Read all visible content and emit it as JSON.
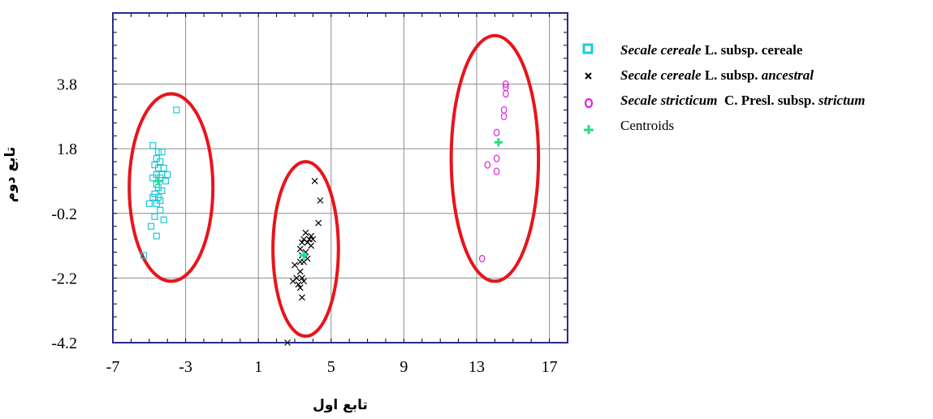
{
  "colors": {
    "cereale": "#1ec8d8",
    "ancestral": "#000000",
    "strictum": "#e020e0",
    "centroid": "#22e08a",
    "ellipse": "#e8141c",
    "frame": "#2c2c8c",
    "grid": "#8c8c8c"
  },
  "legend": [
    {
      "marker": "square-icon",
      "parts": [
        {
          "text": "Secale cereale",
          "italic": true
        },
        {
          "text": " L. subsp. cereale",
          "italic": false
        }
      ]
    },
    {
      "marker": "x-icon",
      "parts": [
        {
          "text": "Secale cereale",
          "italic": true
        },
        {
          "text": " L. subsp. ",
          "italic": false
        },
        {
          "text": "ancestral",
          "italic": true
        }
      ]
    },
    {
      "marker": "circle-icon",
      "parts": [
        {
          "text": "Secale stricticum",
          "italic": true
        },
        {
          "text": "  C. Presl. subsp. ",
          "italic": false
        },
        {
          "text": "strictum",
          "italic": true
        }
      ]
    },
    {
      "marker": "plus-icon",
      "parts": [
        {
          "text": "Centroids",
          "italic": false
        }
      ],
      "plain": true
    }
  ],
  "chart_data": {
    "type": "scatter",
    "xlabel": "تابع اول",
    "ylabel": "تابع دوم",
    "xlim": [
      -7,
      18
    ],
    "ylim": [
      -4.2,
      6.0
    ],
    "xticks": [
      -7,
      -3,
      1,
      5,
      9,
      13,
      17
    ],
    "xtick_labels": [
      "-7",
      "-3",
      "1",
      "5",
      "9",
      "13",
      "17"
    ],
    "yticks": [
      -4.2,
      -2.2,
      -0.2,
      1.8,
      3.8
    ],
    "ytick_labels": [
      "-4.2",
      "-2.2",
      "-0.2",
      "1.8",
      "3.8"
    ],
    "grid": true,
    "legend_position": "right",
    "series": [
      {
        "name": "Secale cereale L. subsp. cereale",
        "marker": "square",
        "points": [
          [
            -3.5,
            3.0
          ],
          [
            -4.8,
            1.9
          ],
          [
            -4.5,
            1.7
          ],
          [
            -4.3,
            1.7
          ],
          [
            -4.6,
            1.5
          ],
          [
            -4.4,
            1.4
          ],
          [
            -4.7,
            1.3
          ],
          [
            -4.5,
            1.2
          ],
          [
            -4.2,
            1.2
          ],
          [
            -4.6,
            1.0
          ],
          [
            -4.3,
            1.0
          ],
          [
            -4.0,
            1.0
          ],
          [
            -4.8,
            0.9
          ],
          [
            -4.4,
            0.9
          ],
          [
            -4.1,
            0.8
          ],
          [
            -4.6,
            0.7
          ],
          [
            -4.5,
            0.6
          ],
          [
            -4.3,
            0.5
          ],
          [
            -4.7,
            0.4
          ],
          [
            -4.5,
            0.3
          ],
          [
            -4.8,
            0.3
          ],
          [
            -4.4,
            0.2
          ],
          [
            -4.6,
            0.1
          ],
          [
            -5.0,
            0.1
          ],
          [
            -4.4,
            -0.1
          ],
          [
            -4.7,
            -0.3
          ],
          [
            -4.2,
            -0.4
          ],
          [
            -4.9,
            -0.6
          ],
          [
            -4.6,
            -0.9
          ],
          [
            -5.3,
            -1.5
          ]
        ]
      },
      {
        "name": "Secale cereale L. subsp. ancestral",
        "marker": "x",
        "points": [
          [
            4.1,
            0.8
          ],
          [
            4.4,
            0.2
          ],
          [
            4.3,
            -0.5
          ],
          [
            3.6,
            -0.8
          ],
          [
            3.9,
            -0.9
          ],
          [
            3.5,
            -1.0
          ],
          [
            3.8,
            -1.0
          ],
          [
            4.0,
            -1.0
          ],
          [
            3.4,
            -1.1
          ],
          [
            3.7,
            -1.1
          ],
          [
            3.9,
            -1.2
          ],
          [
            3.3,
            -1.3
          ],
          [
            3.6,
            -1.4
          ],
          [
            3.4,
            -1.5
          ],
          [
            3.7,
            -1.6
          ],
          [
            3.5,
            -1.7
          ],
          [
            3.3,
            -1.7
          ],
          [
            3.0,
            -1.8
          ],
          [
            3.3,
            -2.0
          ],
          [
            3.1,
            -2.2
          ],
          [
            3.4,
            -2.2
          ],
          [
            2.9,
            -2.3
          ],
          [
            3.5,
            -2.3
          ],
          [
            3.2,
            -2.4
          ],
          [
            3.3,
            -2.5
          ],
          [
            3.4,
            -2.8
          ],
          [
            2.6,
            -4.2
          ]
        ]
      },
      {
        "name": "Secale stricticum C. Presl. subsp. strictum",
        "marker": "circle",
        "points": [
          [
            14.6,
            3.8
          ],
          [
            14.6,
            3.7
          ],
          [
            14.6,
            3.5
          ],
          [
            14.5,
            3.0
          ],
          [
            14.5,
            2.8
          ],
          [
            14.1,
            2.3
          ],
          [
            14.1,
            1.5
          ],
          [
            13.6,
            1.3
          ],
          [
            14.1,
            1.1
          ],
          [
            13.3,
            -1.6
          ]
        ]
      },
      {
        "name": "Centroids",
        "marker": "plus",
        "points": [
          [
            -4.5,
            0.8
          ],
          [
            3.5,
            -1.5
          ],
          [
            14.2,
            2.0
          ]
        ]
      }
    ],
    "ellipses": [
      {
        "center": [
          -3.8,
          0.6
        ],
        "radius_x": 2.3,
        "radius_y": 2.9
      },
      {
        "center": [
          3.6,
          -1.3
        ],
        "radius_x": 1.8,
        "radius_y": 2.7
      },
      {
        "center": [
          14.0,
          1.5
        ],
        "radius_x": 2.4,
        "radius_y": 3.8
      }
    ]
  }
}
